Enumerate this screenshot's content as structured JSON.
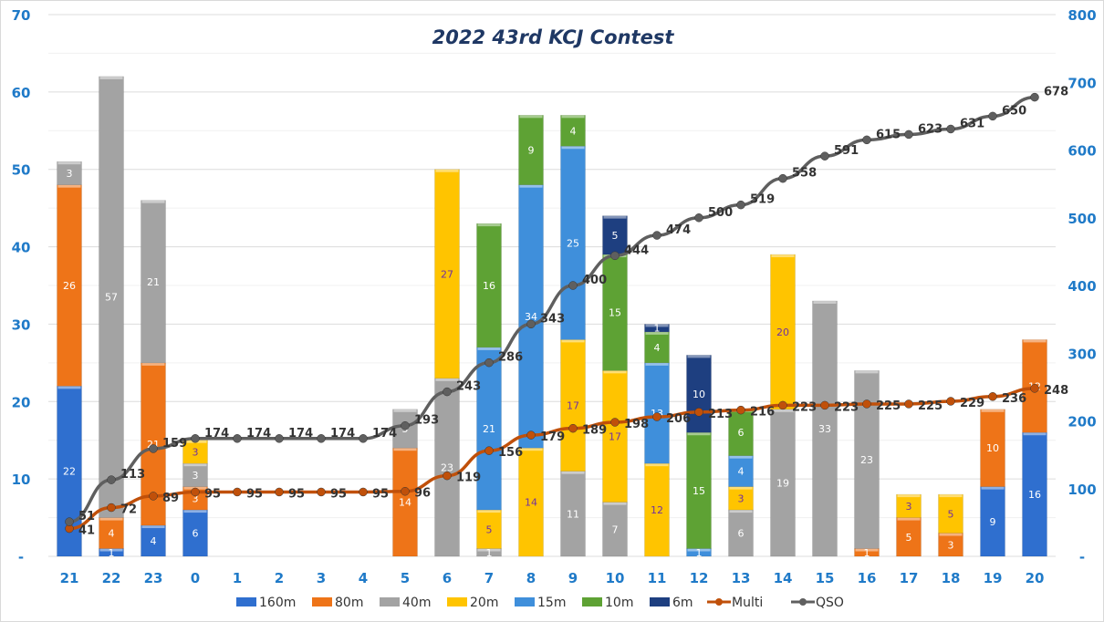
{
  "chart_data": {
    "type": "bar",
    "title": "2022  43rd KCJ Contest",
    "categories": [
      "21",
      "22",
      "23",
      "0",
      "1",
      "2",
      "3",
      "4",
      "5",
      "6",
      "7",
      "8",
      "9",
      "10",
      "11",
      "12",
      "13",
      "14",
      "15",
      "16",
      "17",
      "18",
      "19",
      "20"
    ],
    "ylim": [
      0,
      70
    ],
    "y_ticks": [
      "-",
      "10",
      "20",
      "30",
      "40",
      "50",
      "60",
      "70"
    ],
    "y2lim": [
      0,
      800
    ],
    "y2_ticks": [
      "-",
      "100",
      "200",
      "300",
      "400",
      "500",
      "600",
      "700",
      "800"
    ],
    "legend_position": "bottom",
    "grid": true,
    "series": [
      {
        "name": "160m",
        "color": "#2f6fcf",
        "label_color": "#ffffff",
        "values": [
          22,
          1,
          4,
          6,
          0,
          0,
          0,
          0,
          0,
          0,
          0,
          0,
          0,
          0,
          0,
          0,
          0,
          0,
          0,
          0,
          0,
          0,
          9,
          16
        ]
      },
      {
        "name": "80m",
        "color": "#ee7418",
        "label_color": "#ffffff",
        "values": [
          26,
          4,
          21,
          3,
          0,
          0,
          0,
          0,
          14,
          0,
          0,
          0,
          0,
          0,
          0,
          0,
          0,
          0,
          0,
          1,
          5,
          3,
          10,
          12
        ]
      },
      {
        "name": "40m",
        "color": "#a3a3a3",
        "label_color": "#ffffff",
        "values": [
          3,
          57,
          21,
          3,
          0,
          0,
          0,
          0,
          5,
          23,
          1,
          0,
          11,
          7,
          0,
          0,
          6,
          19,
          33,
          23,
          0,
          0,
          0,
          0
        ]
      },
      {
        "name": "20m",
        "color": "#ffc400",
        "label_color": "#7030a0",
        "values": [
          0,
          0,
          0,
          3,
          0,
          0,
          0,
          0,
          0,
          27,
          5,
          14,
          17,
          17,
          12,
          0,
          3,
          20,
          0,
          0,
          3,
          5,
          0,
          0
        ]
      },
      {
        "name": "15m",
        "color": "#3f8fdb",
        "label_color": "#ffffff",
        "values": [
          0,
          0,
          0,
          0,
          0,
          0,
          0,
          0,
          0,
          0,
          21,
          34,
          25,
          0,
          13,
          1,
          4,
          0,
          0,
          0,
          0,
          0,
          0,
          0
        ]
      },
      {
        "name": "10m",
        "color": "#5ea234",
        "label_color": "#ffffff",
        "values": [
          0,
          0,
          0,
          0,
          0,
          0,
          0,
          0,
          0,
          0,
          16,
          9,
          4,
          15,
          4,
          15,
          6,
          0,
          0,
          0,
          0,
          0,
          0,
          0
        ]
      },
      {
        "name": "6m",
        "color": "#1e3f80",
        "label_color": "#ffffff",
        "values": [
          0,
          0,
          0,
          0,
          0,
          0,
          0,
          0,
          0,
          0,
          0,
          0,
          0,
          5,
          1,
          10,
          0,
          0,
          0,
          0,
          0,
          0,
          0,
          0
        ]
      }
    ],
    "lines": [
      {
        "name": "Multi",
        "axis": "right",
        "color": "#c0500a",
        "values": [
          41,
          72,
          89,
          95,
          95,
          95,
          95,
          95,
          96,
          119,
          156,
          179,
          189,
          198,
          206,
          213,
          216,
          223,
          223,
          225,
          225,
          229,
          236,
          248
        ]
      },
      {
        "name": "QSO",
        "axis": "right",
        "color": "#5f5f5f",
        "values": [
          51,
          113,
          159,
          174,
          174,
          174,
          174,
          174,
          193,
          243,
          286,
          343,
          400,
          444,
          474,
          500,
          519,
          558,
          591,
          615,
          623,
          631,
          650,
          678
        ]
      }
    ]
  }
}
